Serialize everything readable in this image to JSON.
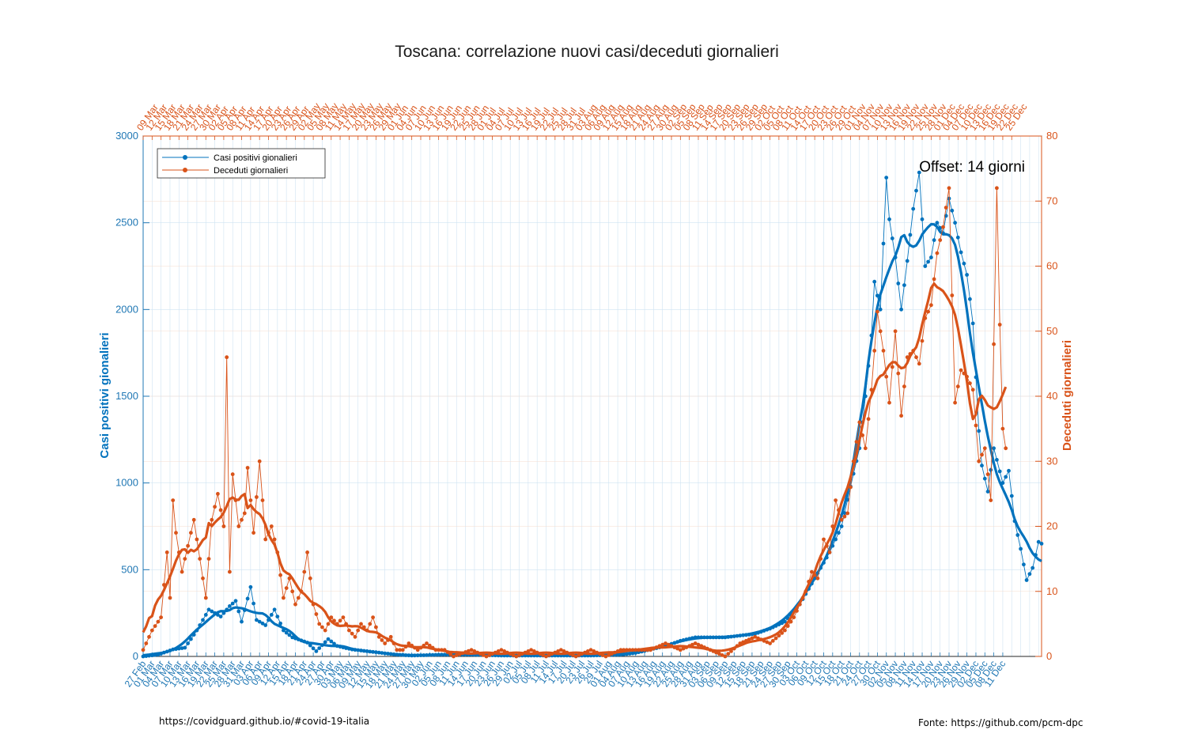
{
  "chart_data": {
    "type": "line",
    "title": "Toscana: correlazione nuovi casi/deceduti giornalieri",
    "ylabel_left": "Casi positivi gionalieri",
    "ylabel_right": "Deceduti giornalieri",
    "ylim_left": [
      0,
      3000
    ],
    "ylim_right": [
      0,
      80
    ],
    "yticks_left": [
      "0",
      "500",
      "1000",
      "1500",
      "2000",
      "2500",
      "3000"
    ],
    "yticks_right": [
      "0",
      "10",
      "20",
      "30",
      "40",
      "50",
      "60",
      "70",
      "80"
    ],
    "grid": true,
    "legend_placement": "top-left",
    "annotation": "Offset: 14 giorni",
    "bottom_axis_first_date": "27 Feb",
    "top_axis_first_date": "09 Mar",
    "bottom_date_ticks": [
      "27 Feb",
      "01 Mar",
      "04 Mar",
      "07 Mar",
      "10 Mar",
      "13 Mar",
      "16 Mar",
      "19 Mar",
      "22 Mar",
      "25 Mar",
      "28 Mar",
      "31 Mar",
      "03 Apr",
      "06 Apr",
      "09 Apr",
      "12 Apr",
      "15 Apr",
      "18 Apr",
      "21 Apr",
      "24 Apr",
      "27 Apr",
      "30 Apr",
      "03 May",
      "06 May",
      "09 May",
      "12 May",
      "15 May",
      "18 May",
      "21 May",
      "24 May",
      "27 May",
      "30 May",
      "02 Jun",
      "05 Jun",
      "08 Jun",
      "11 Jun",
      "14 Jun",
      "17 Jun",
      "20 Jun",
      "23 Jun",
      "26 Jun",
      "29 Jun",
      "02 Jul",
      "05 Jul",
      "08 Jul",
      "11 Jul",
      "14 Jul",
      "17 Jul",
      "20 Jul",
      "23 Jul",
      "26 Jul",
      "29 Jul",
      "01 Aug",
      "04 Aug",
      "07 Aug",
      "10 Aug",
      "13 Aug",
      "16 Aug",
      "19 Aug",
      "22 Aug",
      "25 Aug",
      "28 Aug",
      "31 Aug",
      "03 Sep",
      "06 Sep",
      "09 Sep",
      "12 Sep",
      "15 Sep",
      "18 Sep",
      "21 Sep",
      "24 Sep",
      "27 Sep",
      "30 Sep",
      "03 Oct",
      "06 Oct",
      "09 Oct",
      "12 Oct",
      "15 Oct",
      "18 Oct",
      "21 Oct",
      "24 Oct",
      "27 Oct",
      "30 Oct",
      "02 Nov",
      "05 Nov",
      "08 Nov",
      "11 Nov",
      "14 Nov",
      "17 Nov",
      "20 Nov",
      "23 Nov",
      "26 Nov",
      "29 Nov",
      "02 Dec",
      "05 Dec",
      "08 Dec",
      "11 Dec"
    ],
    "top_date_ticks": [
      "09 Mar",
      "12 Mar",
      "15 Mar",
      "18 Mar",
      "21 Mar",
      "24 Mar",
      "27 Mar",
      "30 Mar",
      "02 Apr",
      "05 Apr",
      "08 Apr",
      "11 Apr",
      "14 Apr",
      "17 Apr",
      "20 Apr",
      "23 Apr",
      "26 Apr",
      "29 Apr",
      "02 May",
      "05 May",
      "08 May",
      "11 May",
      "14 May",
      "17 May",
      "20 May",
      "23 May",
      "26 May",
      "29 May",
      "01 Jun",
      "04 Jun",
      "07 Jun",
      "10 Jun",
      "13 Jun",
      "16 Jun",
      "19 Jun",
      "22 Jun",
      "25 Jun",
      "28 Jun",
      "01 Jul",
      "04 Jul",
      "07 Jul",
      "10 Jul",
      "13 Jul",
      "16 Jul",
      "19 Jul",
      "22 Jul",
      "25 Jul",
      "28 Jul",
      "31 Jul",
      "03 Aug",
      "06 Aug",
      "09 Aug",
      "12 Aug",
      "15 Aug",
      "18 Aug",
      "21 Aug",
      "24 Aug",
      "27 Aug",
      "30 Aug",
      "02 Sep",
      "05 Sep",
      "08 Sep",
      "11 Sep",
      "14 Sep",
      "17 Sep",
      "20 Sep",
      "23 Sep",
      "26 Sep",
      "29 Sep",
      "02 Oct",
      "05 Oct",
      "08 Oct",
      "11 Oct",
      "14 Oct",
      "17 Oct",
      "20 Oct",
      "23 Oct",
      "26 Oct",
      "29 Oct",
      "01 Nov",
      "04 Nov",
      "07 Nov",
      "10 Nov",
      "13 Nov",
      "16 Nov",
      "19 Nov",
      "22 Nov",
      "25 Nov",
      "28 Nov",
      "01 Dec",
      "04 Dec",
      "07 Dec",
      "10 Dec",
      "13 Dec",
      "16 Dec",
      "19 Dec",
      "22 Dec",
      "25 Dec"
    ],
    "series": [
      {
        "name": "Casi positivi gionalieri",
        "axis": "left",
        "color": "#0072bd",
        "key_points": [
          [
            0,
            0
          ],
          [
            5,
            10
          ],
          [
            10,
            40
          ],
          [
            14,
            50
          ],
          [
            18,
            150
          ],
          [
            22,
            270
          ],
          [
            26,
            230
          ],
          [
            29,
            290
          ],
          [
            31,
            320
          ],
          [
            33,
            200
          ],
          [
            36,
            400
          ],
          [
            38,
            210
          ],
          [
            41,
            180
          ],
          [
            44,
            270
          ],
          [
            47,
            150
          ],
          [
            50,
            110
          ],
          [
            55,
            80
          ],
          [
            58,
            30
          ],
          [
            62,
            100
          ],
          [
            65,
            60
          ],
          [
            70,
            40
          ],
          [
            75,
            30
          ],
          [
            80,
            20
          ],
          [
            85,
            10
          ],
          [
            90,
            5
          ],
          [
            100,
            10
          ],
          [
            110,
            10
          ],
          [
            120,
            5
          ],
          [
            130,
            5
          ],
          [
            140,
            5
          ],
          [
            150,
            5
          ],
          [
            160,
            10
          ],
          [
            165,
            20
          ],
          [
            170,
            40
          ],
          [
            175,
            60
          ],
          [
            180,
            90
          ],
          [
            185,
            110
          ],
          [
            190,
            110
          ],
          [
            195,
            110
          ],
          [
            200,
            120
          ],
          [
            205,
            130
          ],
          [
            210,
            160
          ],
          [
            215,
            200
          ],
          [
            220,
            300
          ],
          [
            225,
            450
          ],
          [
            230,
            600
          ],
          [
            234,
            750
          ],
          [
            237,
            980
          ],
          [
            240,
            1200
          ],
          [
            242,
            1500
          ],
          [
            244,
            1850
          ],
          [
            245,
            2160
          ],
          [
            247,
            2000
          ],
          [
            249,
            2760
          ],
          [
            250,
            2520
          ],
          [
            252,
            2300
          ],
          [
            254,
            2000
          ],
          [
            256,
            2280
          ],
          [
            258,
            2580
          ],
          [
            260,
            2790
          ],
          [
            262,
            2250
          ],
          [
            264,
            2300
          ],
          [
            266,
            2500
          ],
          [
            268,
            2440
          ],
          [
            270,
            2640
          ],
          [
            272,
            2500
          ],
          [
            274,
            2330
          ],
          [
            276,
            2200
          ],
          [
            278,
            1920
          ],
          [
            280,
            1300
          ],
          [
            281,
            1100
          ],
          [
            283,
            950
          ],
          [
            285,
            1200
          ],
          [
            288,
            1000
          ],
          [
            290,
            1070
          ],
          [
            292,
            780
          ],
          [
            294,
            620
          ],
          [
            296,
            440
          ],
          [
            298,
            510
          ],
          [
            300,
            660
          ],
          [
            301,
            650
          ]
        ]
      },
      {
        "name": "Deceduti giornalieri",
        "axis": "right",
        "color": "#d95319",
        "key_points": [
          [
            0,
            1
          ],
          [
            3,
            4
          ],
          [
            6,
            6
          ],
          [
            8,
            16
          ],
          [
            9,
            9
          ],
          [
            10,
            24
          ],
          [
            11,
            19
          ],
          [
            13,
            13
          ],
          [
            15,
            17
          ],
          [
            17,
            21
          ],
          [
            19,
            15
          ],
          [
            21,
            9
          ],
          [
            23,
            21
          ],
          [
            25,
            25
          ],
          [
            27,
            20
          ],
          [
            28,
            46
          ],
          [
            29,
            13
          ],
          [
            30,
            28
          ],
          [
            32,
            20
          ],
          [
            34,
            22
          ],
          [
            35,
            29
          ],
          [
            37,
            19
          ],
          [
            39,
            30
          ],
          [
            41,
            18
          ],
          [
            43,
            20
          ],
          [
            45,
            16
          ],
          [
            47,
            9
          ],
          [
            49,
            12
          ],
          [
            51,
            8
          ],
          [
            53,
            10
          ],
          [
            55,
            16
          ],
          [
            57,
            8
          ],
          [
            59,
            5
          ],
          [
            61,
            4
          ],
          [
            63,
            6
          ],
          [
            65,
            5
          ],
          [
            67,
            6
          ],
          [
            69,
            4
          ],
          [
            71,
            3
          ],
          [
            73,
            5
          ],
          [
            75,
            4
          ],
          [
            77,
            6
          ],
          [
            79,
            3
          ],
          [
            81,
            2
          ],
          [
            83,
            3
          ],
          [
            85,
            1
          ],
          [
            87,
            1
          ],
          [
            89,
            2
          ],
          [
            92,
            1
          ],
          [
            95,
            2
          ],
          [
            98,
            1
          ],
          [
            101,
            1
          ],
          [
            104,
            0
          ],
          [
            110,
            1
          ],
          [
            115,
            0
          ],
          [
            120,
            1
          ],
          [
            125,
            0
          ],
          [
            130,
            1
          ],
          [
            135,
            0
          ],
          [
            140,
            1
          ],
          [
            145,
            0
          ],
          [
            150,
            1
          ],
          [
            155,
            0
          ],
          [
            160,
            1
          ],
          [
            165,
            1
          ],
          [
            170,
            1
          ],
          [
            175,
            2
          ],
          [
            180,
            1
          ],
          [
            185,
            2
          ],
          [
            190,
            1
          ],
          [
            195,
            0
          ],
          [
            200,
            2
          ],
          [
            205,
            3
          ],
          [
            210,
            2
          ],
          [
            215,
            4
          ],
          [
            218,
            6
          ],
          [
            220,
            8
          ],
          [
            222,
            10
          ],
          [
            224,
            13
          ],
          [
            226,
            12
          ],
          [
            228,
            18
          ],
          [
            230,
            16
          ],
          [
            232,
            24
          ],
          [
            234,
            21
          ],
          [
            236,
            22
          ],
          [
            238,
            30
          ],
          [
            240,
            36
          ],
          [
            242,
            32
          ],
          [
            244,
            41
          ],
          [
            246,
            53
          ],
          [
            248,
            47
          ],
          [
            250,
            39
          ],
          [
            252,
            50
          ],
          [
            254,
            37
          ],
          [
            256,
            46
          ],
          [
            258,
            47
          ],
          [
            260,
            45
          ],
          [
            262,
            52
          ],
          [
            264,
            54
          ],
          [
            266,
            62
          ],
          [
            268,
            66
          ],
          [
            270,
            72
          ],
          [
            272,
            39
          ],
          [
            274,
            44
          ],
          [
            276,
            43
          ],
          [
            278,
            41
          ],
          [
            280,
            30
          ],
          [
            282,
            32
          ],
          [
            284,
            24
          ],
          [
            286,
            72
          ],
          [
            287,
            51
          ],
          [
            288,
            35
          ],
          [
            289,
            32
          ]
        ]
      }
    ]
  },
  "legend": {
    "series1": "Casi positivi gionalieri",
    "series2": "Deceduti giornalieri"
  },
  "footer": {
    "left": "https://covidguard.github.io/#covid-19-italia",
    "right": "Fonte: https://github.com/pcm-dpc"
  }
}
